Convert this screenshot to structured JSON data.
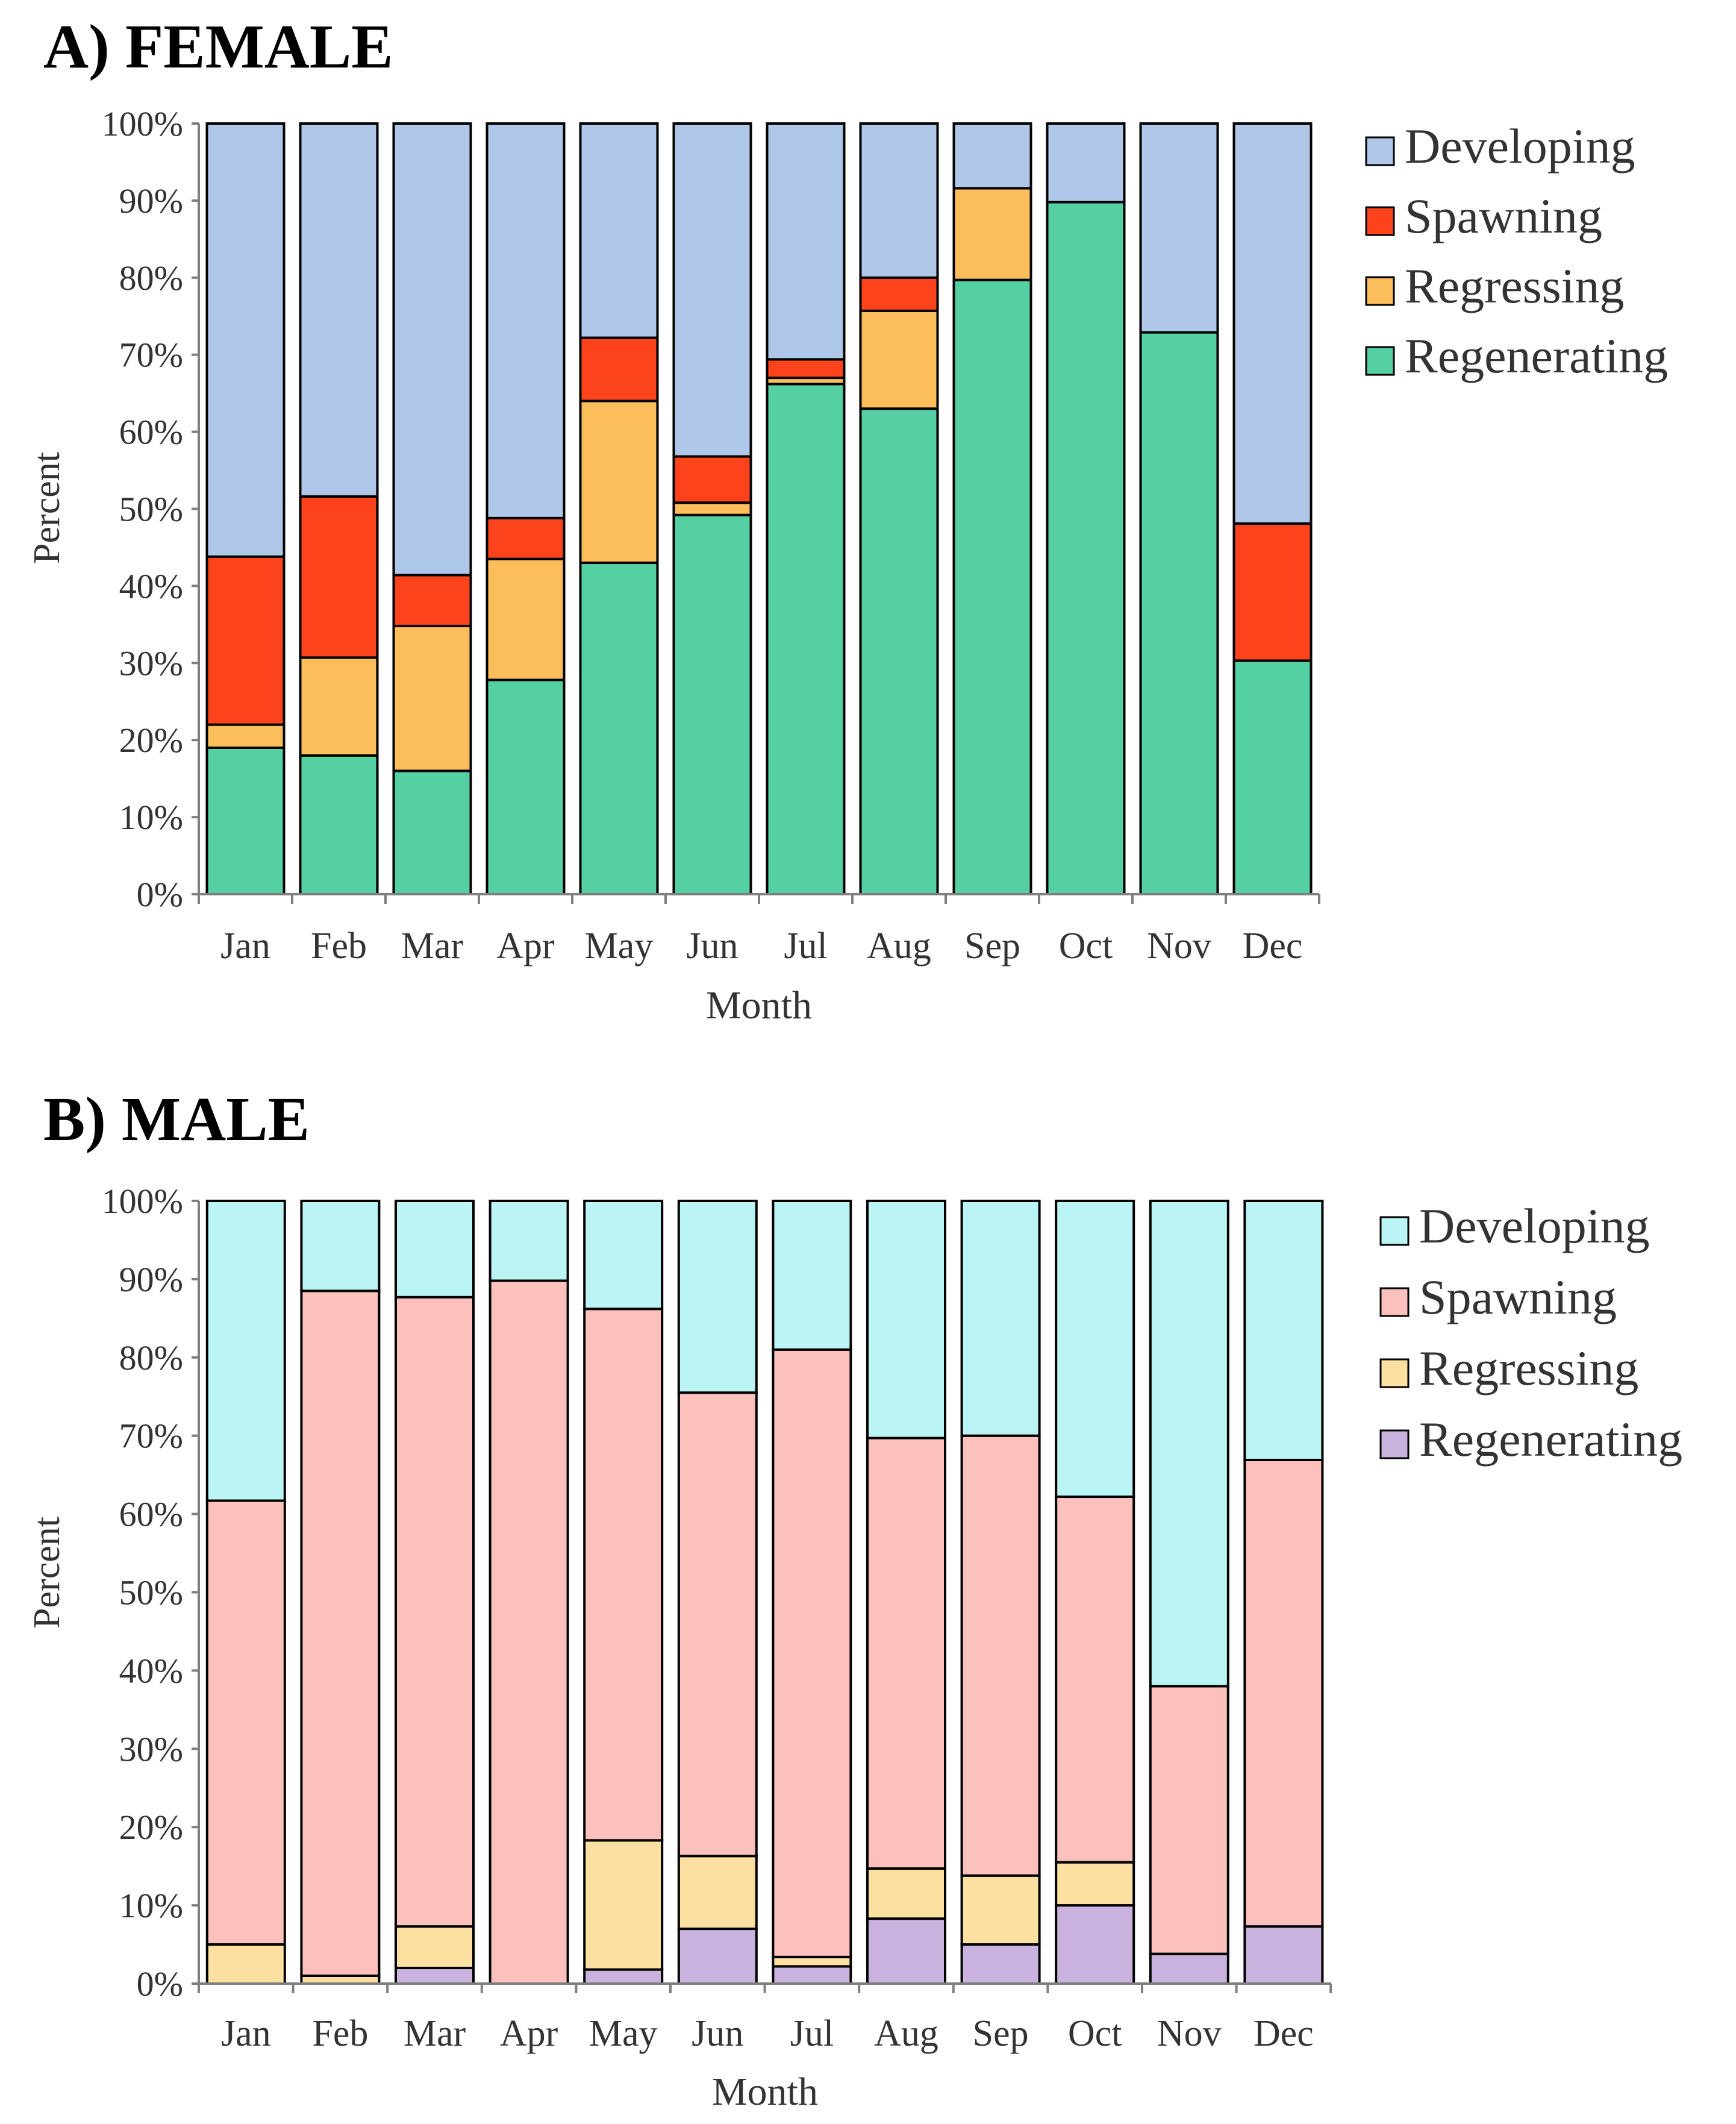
{
  "chart_data": [
    {
      "type": "bar",
      "stacked": true,
      "title": "A) FEMALE",
      "xlabel": "Month",
      "ylabel": "Percent",
      "ylim": [
        0,
        100
      ],
      "yticks": [
        "0%",
        "10%",
        "20%",
        "30%",
        "40%",
        "50%",
        "60%",
        "70%",
        "80%",
        "90%",
        "100%"
      ],
      "legend_position": "right",
      "categories": [
        "Jan",
        "Feb",
        "Mar",
        "Apr",
        "May",
        "Jun",
        "Jul",
        "Aug",
        "Sep",
        "Oct",
        "Nov",
        "Dec"
      ],
      "series": [
        {
          "name": "Regenerating",
          "color": "#55D0A3",
          "values": [
            19,
            18,
            16,
            27.8,
            43,
            49.2,
            66.2,
            63,
            79.7,
            89.8,
            72.9,
            30.3
          ]
        },
        {
          "name": "Regressing",
          "color": "#FCBD5B",
          "values": [
            3,
            12.7,
            18.8,
            15.7,
            21,
            1.6,
            0.8,
            12.7,
            11.9,
            0,
            0,
            0
          ]
        },
        {
          "name": "Spawning",
          "color": "#FC431C",
          "values": [
            21.8,
            20.9,
            6.6,
            5.3,
            8.2,
            6,
            2.4,
            4.3,
            0,
            0,
            0,
            17.8
          ]
        },
        {
          "name": "Developing",
          "color": "#AFC7E9",
          "values": [
            56.2,
            48.4,
            58.6,
            51.2,
            27.8,
            43.2,
            30.6,
            20,
            8.4,
            10.2,
            27.1,
            51.9
          ]
        }
      ],
      "legend_order": [
        "Developing",
        "Spawning",
        "Regressing",
        "Regenerating"
      ]
    },
    {
      "type": "bar",
      "stacked": true,
      "title": "B) MALE",
      "xlabel": "Month",
      "ylabel": "Percent",
      "ylim": [
        0,
        100
      ],
      "yticks": [
        "0%",
        "10%",
        "20%",
        "30%",
        "40%",
        "50%",
        "60%",
        "70%",
        "80%",
        "90%",
        "100%"
      ],
      "legend_position": "right",
      "categories": [
        "Jan",
        "Feb",
        "Mar",
        "Apr",
        "May",
        "Jun",
        "Jul",
        "Aug",
        "Sep",
        "Oct",
        "Nov",
        "Dec"
      ],
      "series": [
        {
          "name": "Regenerating",
          "color": "#C9B3DE",
          "values": [
            0,
            0,
            2,
            0,
            1.8,
            7,
            2.2,
            8.3,
            5,
            10,
            3.8,
            7.3
          ]
        },
        {
          "name": "Regressing",
          "color": "#FCE0A1",
          "values": [
            5,
            1,
            5.3,
            0,
            16.5,
            9.3,
            1.2,
            6.4,
            8.8,
            5.5,
            0,
            0
          ]
        },
        {
          "name": "Spawning",
          "color": "#FCC0BD",
          "values": [
            56.7,
            87.5,
            80.4,
            89.8,
            67.9,
            59.2,
            77.6,
            55,
            56.2,
            46.7,
            34.2,
            59.6
          ]
        },
        {
          "name": "Developing",
          "color": "#BAF4F4",
          "values": [
            38.3,
            11.5,
            12.3,
            10.2,
            13.8,
            24.5,
            19,
            30.3,
            30,
            37.8,
            62,
            33.1
          ]
        }
      ],
      "legend_order": [
        "Developing",
        "Spawning",
        "Regressing",
        "Regenerating"
      ]
    }
  ]
}
